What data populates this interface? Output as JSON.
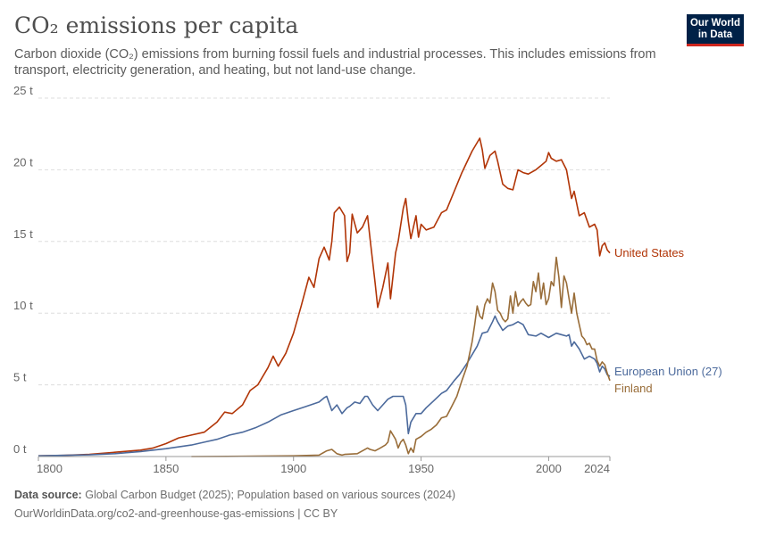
{
  "header": {
    "title": "CO₂ emissions per capita",
    "subtitle": "Carbon dioxide (CO₂) emissions from burning fossil fuels and industrial processes. This includes emissions from transport, electricity generation, and heating, but not land-use change.",
    "logo_line1": "Our World",
    "logo_line2": "in Data"
  },
  "footer": {
    "source_label": "Data source:",
    "source_text": "Global Carbon Budget (2025); Population based on various sources (2024)",
    "url_text": "OurWorldinData.org/co2-and-greenhouse-gas-emissions | CC BY"
  },
  "colors": {
    "United States": "#b13507",
    "European Union (27)": "#4c6a9c",
    "Finland": "#996d39",
    "grid": "#dddddd",
    "axis_text": "#666666"
  },
  "chart_data": {
    "type": "line",
    "title": "CO₂ emissions per capita",
    "xlim": [
      1800,
      2024
    ],
    "ylim": [
      0,
      25
    ],
    "x_ticks": [
      1800,
      1850,
      1900,
      1950,
      2000,
      2024
    ],
    "x_tick_labels": [
      "1800",
      "1850",
      "1900",
      "1950",
      "2000",
      "2024"
    ],
    "y_ticks": [
      0,
      5,
      10,
      15,
      20,
      25
    ],
    "y_tick_labels": [
      "0 t",
      "5 t",
      "10 t",
      "15 t",
      "20 t",
      "25 t"
    ],
    "grid": "horizontal dashed",
    "legend": "line-end labels",
    "series": [
      {
        "name": "United States",
        "x": [
          1800,
          1810,
          1820,
          1830,
          1840,
          1845,
          1850,
          1855,
          1860,
          1865,
          1870,
          1873,
          1876,
          1880,
          1883,
          1886,
          1890,
          1892,
          1894,
          1897,
          1900,
          1903,
          1906,
          1908,
          1910,
          1912,
          1914,
          1915,
          1916,
          1918,
          1920,
          1921,
          1922,
          1923,
          1925,
          1927,
          1929,
          1930,
          1932,
          1933,
          1935,
          1937,
          1938,
          1940,
          1941,
          1943,
          1944,
          1945,
          1946,
          1948,
          1949,
          1950,
          1952,
          1955,
          1958,
          1960,
          1963,
          1966,
          1970,
          1973,
          1974,
          1975,
          1977,
          1979,
          1980,
          1982,
          1984,
          1986,
          1988,
          1990,
          1992,
          1995,
          1997,
          1999,
          2000,
          2001,
          2003,
          2005,
          2007,
          2009,
          2010,
          2012,
          2014,
          2016,
          2018,
          2019,
          2020,
          2021,
          2022,
          2023,
          2024
        ],
        "y": [
          0.05,
          0.08,
          0.15,
          0.3,
          0.45,
          0.6,
          0.9,
          1.3,
          1.5,
          1.7,
          2.4,
          3.1,
          3.0,
          3.6,
          4.6,
          5.0,
          6.2,
          7.0,
          6.3,
          7.2,
          8.6,
          10.5,
          12.5,
          11.8,
          13.8,
          14.6,
          13.7,
          15.0,
          17.0,
          17.4,
          16.8,
          13.6,
          14.2,
          16.9,
          15.6,
          16.0,
          16.8,
          15.2,
          12.1,
          10.4,
          11.8,
          13.5,
          11.0,
          14.2,
          15.0,
          17.3,
          18.0,
          16.4,
          15.2,
          16.8,
          15.3,
          16.2,
          15.8,
          16.0,
          17.0,
          17.2,
          18.5,
          19.8,
          21.3,
          22.2,
          21.4,
          20.1,
          21.0,
          21.3,
          20.6,
          19.0,
          18.7,
          18.6,
          20.0,
          19.8,
          19.7,
          20.0,
          20.3,
          20.6,
          21.2,
          20.8,
          20.6,
          20.7,
          20.0,
          18.0,
          18.5,
          16.8,
          17.0,
          16.0,
          16.2,
          15.8,
          14.0,
          14.7,
          14.9,
          14.4,
          14.2
        ]
      },
      {
        "name": "European Union (27)",
        "x": [
          1800,
          1820,
          1830,
          1840,
          1850,
          1860,
          1865,
          1870,
          1875,
          1880,
          1885,
          1890,
          1895,
          1900,
          1905,
          1910,
          1912,
          1913,
          1915,
          1917,
          1919,
          1920,
          1921,
          1922,
          1924,
          1926,
          1928,
          1929,
          1931,
          1933,
          1935,
          1937,
          1939,
          1941,
          1943,
          1944,
          1945,
          1946,
          1948,
          1950,
          1952,
          1955,
          1958,
          1960,
          1963,
          1965,
          1968,
          1970,
          1972,
          1974,
          1976,
          1978,
          1979,
          1980,
          1982,
          1984,
          1986,
          1988,
          1990,
          1992,
          1995,
          1997,
          2000,
          2003,
          2005,
          2007,
          2008,
          2009,
          2010,
          2012,
          2014,
          2016,
          2018,
          2019,
          2020,
          2021,
          2022,
          2023,
          2024
        ],
        "y": [
          0.05,
          0.12,
          0.2,
          0.35,
          0.55,
          0.8,
          1.0,
          1.2,
          1.5,
          1.7,
          2.0,
          2.4,
          2.9,
          3.2,
          3.5,
          3.8,
          4.1,
          4.2,
          3.2,
          3.6,
          3.0,
          3.2,
          3.4,
          3.5,
          3.8,
          3.7,
          4.2,
          4.2,
          3.6,
          3.2,
          3.6,
          4.0,
          4.2,
          4.2,
          4.2,
          3.6,
          1.6,
          2.4,
          3.0,
          3.0,
          3.4,
          3.9,
          4.4,
          4.6,
          5.3,
          5.7,
          6.5,
          7.1,
          7.7,
          8.6,
          8.7,
          9.4,
          9.8,
          9.4,
          8.8,
          9.1,
          9.2,
          9.4,
          9.2,
          8.5,
          8.4,
          8.6,
          8.3,
          8.6,
          8.5,
          8.4,
          8.5,
          7.7,
          8.0,
          7.5,
          6.8,
          7.0,
          6.8,
          6.5,
          5.9,
          6.3,
          6.1,
          5.7,
          5.6
        ]
      },
      {
        "name": "Finland",
        "x": [
          1860,
          1880,
          1900,
          1910,
          1913,
          1915,
          1917,
          1919,
          1920,
          1925,
          1929,
          1930,
          1932,
          1934,
          1936,
          1937,
          1938,
          1940,
          1941,
          1942,
          1943,
          1944,
          1945,
          1946,
          1947,
          1948,
          1950,
          1952,
          1954,
          1956,
          1958,
          1960,
          1962,
          1964,
          1966,
          1968,
          1970,
          1971,
          1972,
          1973,
          1974,
          1975,
          1976,
          1977,
          1978,
          1979,
          1980,
          1981,
          1982,
          1983,
          1984,
          1985,
          1986,
          1987,
          1988,
          1989,
          1990,
          1991,
          1992,
          1993,
          1994,
          1995,
          1996,
          1997,
          1998,
          1999,
          2000,
          2001,
          2002,
          2003,
          2004,
          2005,
          2006,
          2007,
          2008,
          2009,
          2010,
          2011,
          2012,
          2013,
          2014,
          2015,
          2016,
          2017,
          2018,
          2019,
          2020,
          2021,
          2022,
          2023,
          2024
        ],
        "y": [
          0.0,
          0.02,
          0.05,
          0.1,
          0.4,
          0.5,
          0.2,
          0.1,
          0.15,
          0.2,
          0.6,
          0.5,
          0.4,
          0.6,
          0.8,
          1.0,
          1.8,
          1.2,
          0.6,
          1.0,
          1.2,
          0.8,
          0.2,
          0.6,
          0.3,
          1.2,
          1.4,
          1.7,
          1.9,
          2.2,
          2.7,
          2.8,
          3.5,
          4.2,
          5.3,
          6.3,
          8.0,
          9.2,
          10.5,
          9.8,
          9.6,
          10.6,
          11.0,
          10.7,
          12.1,
          11.5,
          10.2,
          10.0,
          9.6,
          9.4,
          9.6,
          11.2,
          10.0,
          11.5,
          10.5,
          10.8,
          11.0,
          10.7,
          10.5,
          10.6,
          12.2,
          11.5,
          12.8,
          11.0,
          12.1,
          10.6,
          11.0,
          12.2,
          11.9,
          13.9,
          12.5,
          10.4,
          12.6,
          12.1,
          11.0,
          10.0,
          11.4,
          10.0,
          9.2,
          8.4,
          8.2,
          7.8,
          7.9,
          7.5,
          7.5,
          6.7,
          6.3,
          6.6,
          6.4,
          5.8,
          5.3
        ]
      }
    ]
  }
}
